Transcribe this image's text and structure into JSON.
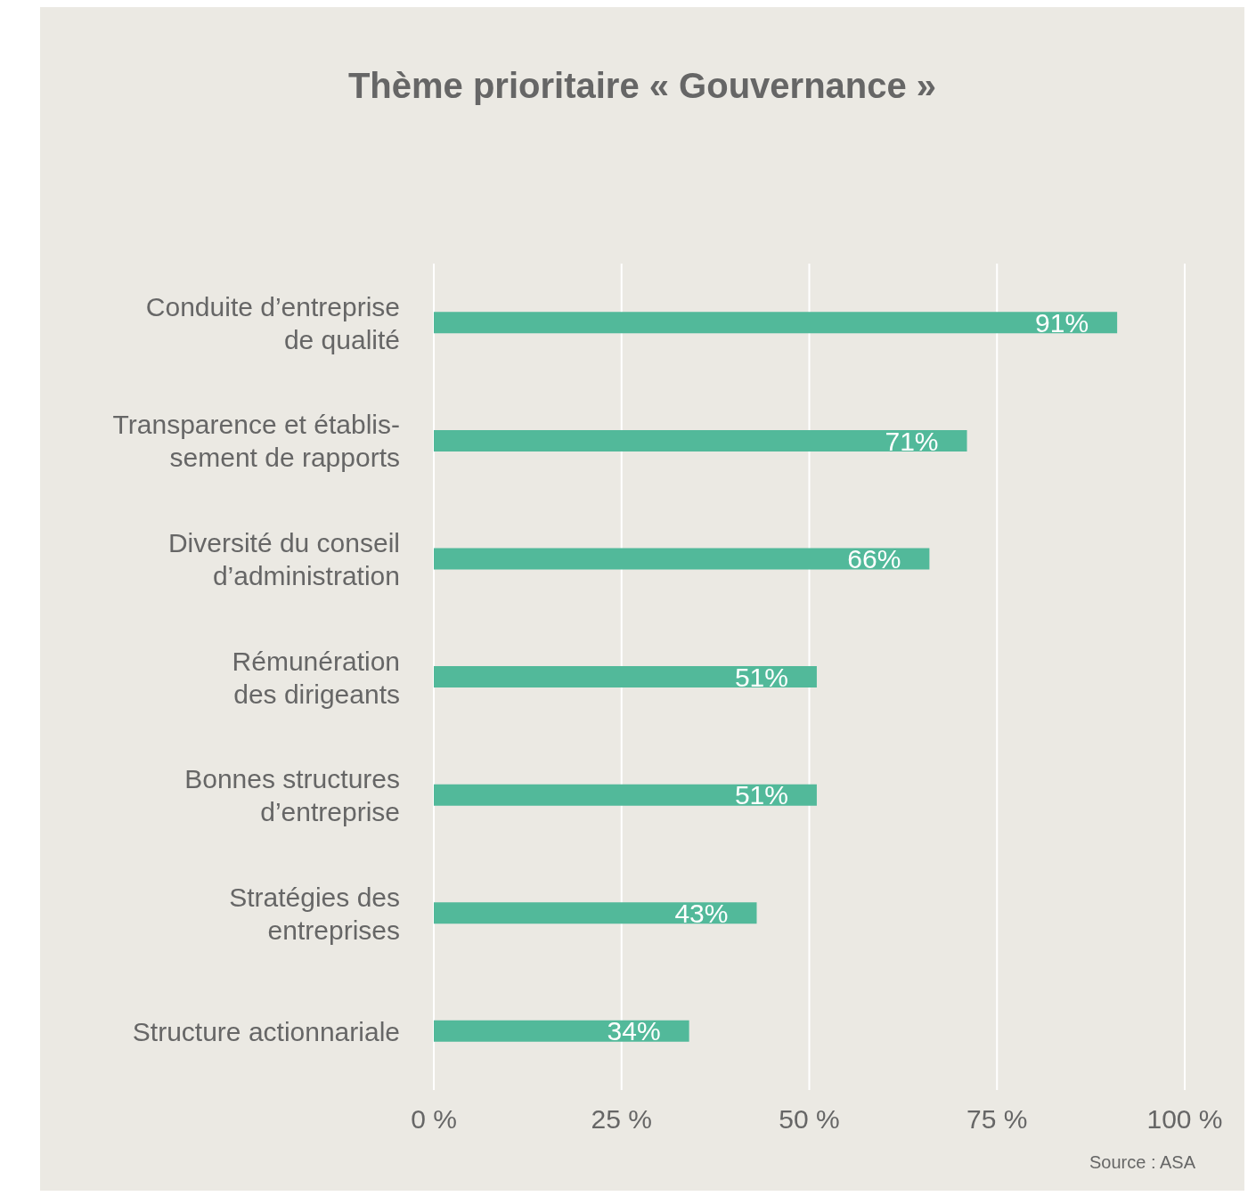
{
  "chart_data": {
    "type": "bar",
    "orientation": "horizontal",
    "title": "Thème prioritaire « Gouvernance »",
    "categories": [
      "Conduite d’entreprise\nde qualité",
      "Transparence et établis-\nsement de rapports",
      "Diversité du conseil\nd’administration",
      "Rémunération\ndes dirigeants",
      "Bonnes structures\nd’entreprise",
      "Stratégies des\nentreprises",
      "Structure actionnariale"
    ],
    "values": [
      91,
      71,
      66,
      51,
      51,
      43,
      34
    ],
    "value_labels": [
      "91%",
      "71%",
      "66%",
      "51%",
      "51%",
      "43%",
      "34%"
    ],
    "color": "#52b99a",
    "xlim": [
      0,
      100
    ],
    "xticks": [
      {
        "value": 0,
        "label": "0 %"
      },
      {
        "value": 25,
        "label": "25 %"
      },
      {
        "value": 50,
        "label": "50 %"
      },
      {
        "value": 75,
        "label": "75 %"
      },
      {
        "value": 100,
        "label": "100 %"
      }
    ],
    "grid": "x",
    "legend": false,
    "annotations": [
      "Source : ASA"
    ]
  }
}
